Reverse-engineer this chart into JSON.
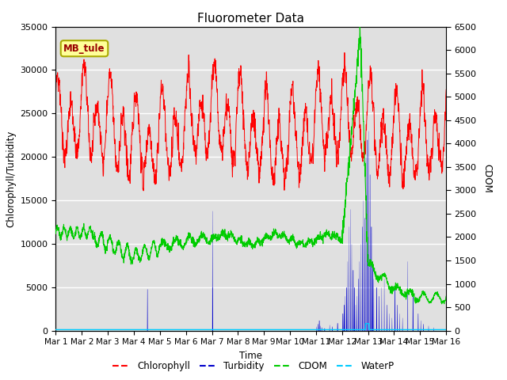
{
  "title": "Fluorometer Data",
  "xlabel": "Time",
  "ylabel_left": "Chlorophyll/Turbidity",
  "ylabel_right": "CDOM",
  "ylim_left": [
    0,
    35000
  ],
  "ylim_right": [
    0,
    6500
  ],
  "yticks_left": [
    0,
    5000,
    10000,
    15000,
    20000,
    25000,
    30000,
    35000
  ],
  "yticks_right": [
    0,
    500,
    1000,
    1500,
    2000,
    2500,
    3000,
    3500,
    4000,
    4500,
    5000,
    5500,
    6000,
    6500
  ],
  "xtick_labels": [
    "Mar 1",
    "Mar 2",
    "Mar 3",
    "Mar 4",
    "Mar 5",
    "Mar 6",
    "Mar 7",
    "Mar 8",
    "Mar 9",
    "Mar 10",
    "Mar 11",
    "Mar 12",
    "Mar 13",
    "Mar 14",
    "Mar 15",
    "Mar 16"
  ],
  "chlorophyll_color": "#ff0000",
  "turbidity_color": "#0000cc",
  "cdom_color": "#00cc00",
  "waterp_color": "#00ccff",
  "bg_color": "#e0e0e0",
  "annotation_text": "MB_tule",
  "annotation_bg": "#ffff99",
  "annotation_border": "#aaaa00",
  "legend_dash_colors": [
    "#ff0000",
    "#0000cc",
    "#00cc00",
    "#00ccff"
  ],
  "legend_labels": [
    "Chlorophyll",
    "Turbidity",
    "CDOM",
    "WaterP"
  ],
  "n_days": 15,
  "pts_per_day": 144
}
